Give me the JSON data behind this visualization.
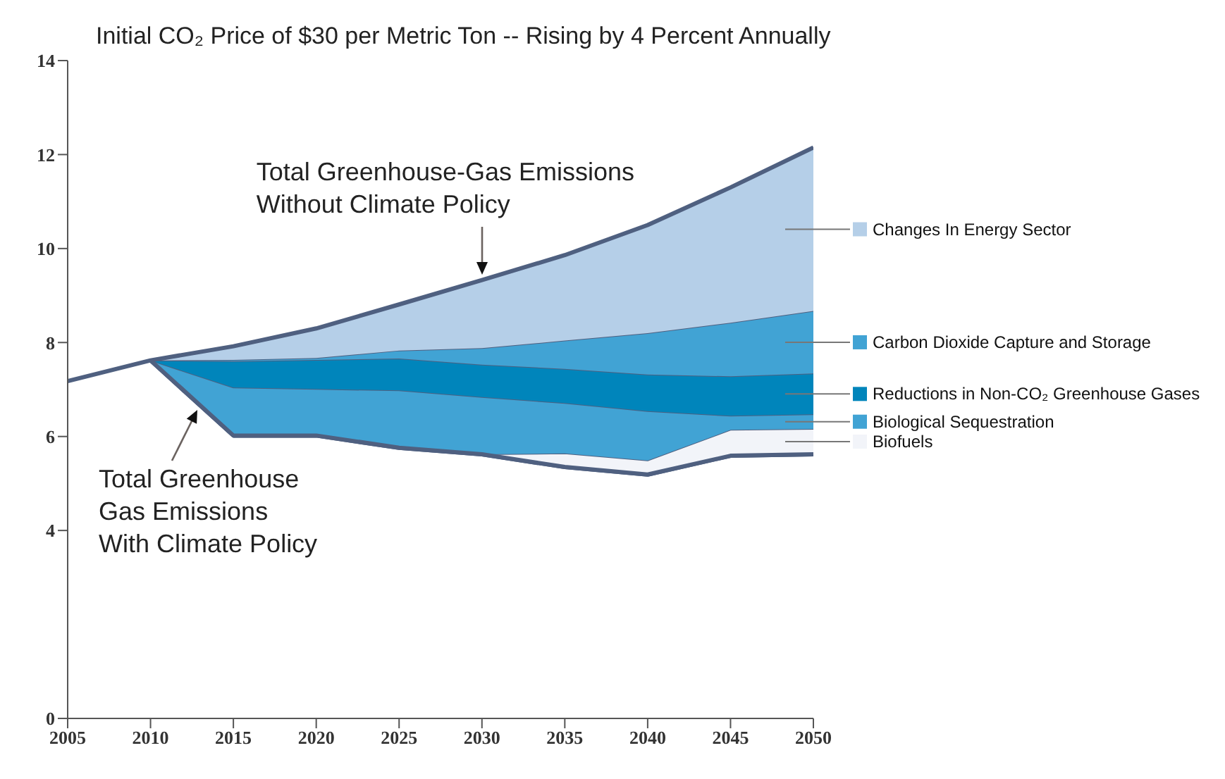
{
  "chart_data": {
    "type": "area",
    "title": "Initial CO₂ Price of $30 per Metric Ton -- Rising by 4 Percent Annually",
    "x": [
      2010,
      2015,
      2020,
      2025,
      2030,
      2035,
      2040,
      2045,
      2050
    ],
    "stacked": true,
    "series": [
      {
        "type": "area",
        "color": "#ffffff",
        "values": [
          7.62,
          6.02,
          6.02,
          5.76,
          5.62,
          5.35,
          5.19,
          5.59,
          5.62
        ]
      },
      {
        "name": "Biofuels",
        "color": "#f2f4f9",
        "values": [
          0,
          0,
          0,
          0,
          0,
          0.29,
          0.3,
          0.55,
          0.54
        ]
      },
      {
        "name": "Biological Sequestration",
        "color": "#41a3d4",
        "values": [
          0,
          1.02,
          0.99,
          1.22,
          1.22,
          1.07,
          1.05,
          0.3,
          0.31
        ]
      },
      {
        "name": "Reductions in Non-CO₂ Greenhouse Gases",
        "color": "#0085bb",
        "values": [
          0,
          0.56,
          0.62,
          0.68,
          0.69,
          0.73,
          0.78,
          0.84,
          0.87
        ]
      },
      {
        "name": "Carbon Dioxide Capture and Storage",
        "color": "#41a3d4",
        "values": [
          0,
          0.03,
          0.04,
          0.17,
          0.35,
          0.6,
          0.88,
          1.14,
          1.33
        ]
      },
      {
        "name": "Changes In Energy Sector",
        "color": "#b5cfe8",
        "values": [
          0,
          0.29,
          0.63,
          0.98,
          1.45,
          1.82,
          2.3,
          2.88,
          3.48
        ]
      },
      {
        "type": "line",
        "color": "#4f6080",
        "x": [
          2005,
          2010,
          2015,
          2020,
          2025,
          2030,
          2035,
          2040,
          2045,
          2050
        ],
        "values": [
          7.18,
          7.62,
          7.92,
          8.3,
          8.81,
          9.33,
          9.86,
          10.5,
          11.3,
          12.15
        ]
      }
    ],
    "xlim": [
      2005,
      2050
    ],
    "xticks": [
      2005,
      2010,
      2015,
      2020,
      2025,
      2030,
      2035,
      2040,
      2045,
      2050
    ],
    "ylim": [
      0,
      14
    ],
    "yticks": [
      0,
      4,
      6,
      8,
      10,
      12,
      14
    ],
    "legend": "right",
    "annotations": [
      {
        "text": "Total Greenhouse-Gas Emissions\nWithout Climate Policy",
        "x": 2030,
        "y": 9.33
      },
      {
        "text": "Total Greenhouse\nGas Emissions\nWith Climate Policy",
        "x": 2013,
        "y": 6.7
      }
    ]
  }
}
